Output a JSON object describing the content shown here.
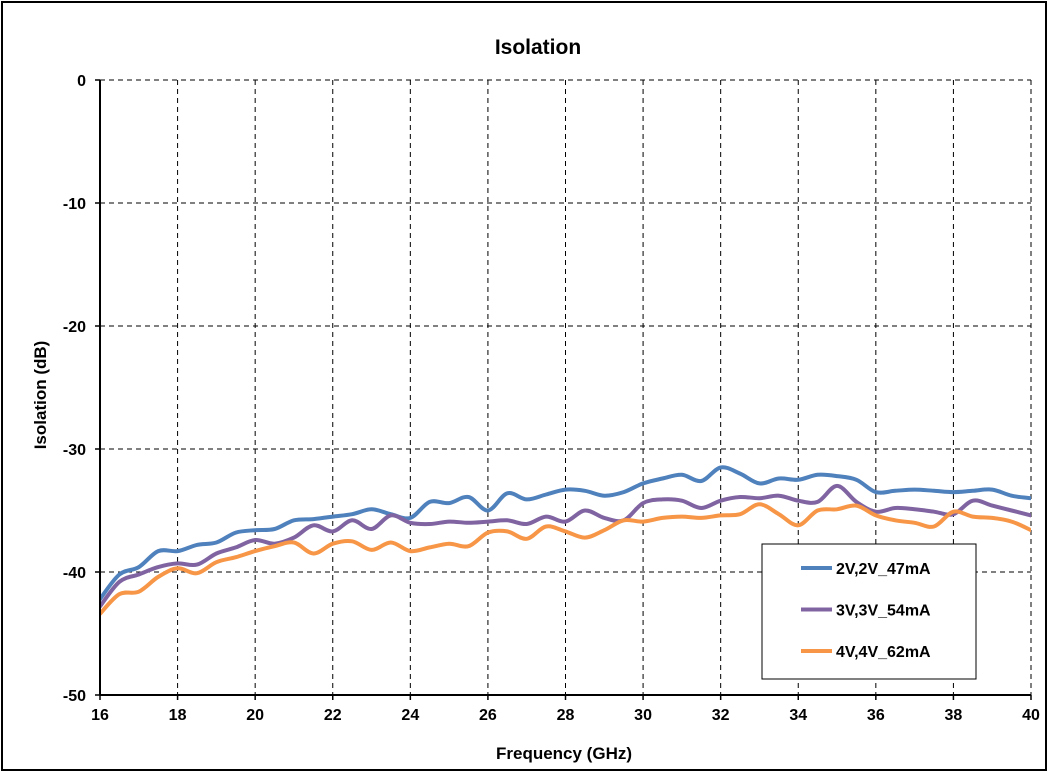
{
  "chart_data": {
    "type": "line",
    "title": "Isolation",
    "xlabel": "Frequency (GHz)",
    "ylabel": "Isolation (dB)",
    "xlim": [
      16,
      40
    ],
    "ylim": [
      -50,
      0
    ],
    "x_ticks": [
      "16",
      "18",
      "20",
      "22",
      "24",
      "26",
      "28",
      "30",
      "32",
      "34",
      "36",
      "38",
      "40"
    ],
    "y_ticks": [
      "0",
      "-10",
      "-20",
      "-30",
      "-40",
      "-50"
    ],
    "grid": "dashed",
    "legend_position": "bottom-right",
    "series": [
      {
        "name": "2V,2V_47mA",
        "color": "#4F81BD",
        "x": [
          16,
          16.5,
          17,
          17.5,
          18,
          18.5,
          19,
          19.5,
          20,
          20.5,
          21,
          21.5,
          22,
          22.5,
          23,
          23.5,
          24,
          24.5,
          25,
          25.5,
          26,
          26.5,
          27,
          27.5,
          28,
          28.5,
          29,
          29.5,
          30,
          30.5,
          31,
          31.5,
          32,
          32.5,
          33,
          33.5,
          34,
          34.5,
          35,
          35.5,
          36,
          36.5,
          37,
          37.5,
          38,
          38.5,
          39,
          39.5,
          40
        ],
        "y": [
          -42.2,
          -40.2,
          -39.6,
          -38.3,
          -38.3,
          -37.8,
          -37.6,
          -36.8,
          -36.6,
          -36.5,
          -35.8,
          -35.7,
          -35.5,
          -35.3,
          -34.9,
          -35.3,
          -35.6,
          -34.3,
          -34.4,
          -33.9,
          -35.0,
          -33.6,
          -34.1,
          -33.7,
          -33.3,
          -33.4,
          -33.8,
          -33.5,
          -32.8,
          -32.4,
          -32.1,
          -32.6,
          -31.5,
          -32.0,
          -32.8,
          -32.4,
          -32.5,
          -32.1,
          -32.2,
          -32.5,
          -33.5,
          -33.4,
          -33.3,
          -33.4,
          -33.5,
          -33.4,
          -33.3,
          -33.8,
          -34.0
        ]
      },
      {
        "name": "3V,3V_54mA",
        "color": "#8064A2",
        "x": [
          16,
          16.5,
          17,
          17.5,
          18,
          18.5,
          19,
          19.5,
          20,
          20.5,
          21,
          21.5,
          22,
          22.5,
          23,
          23.5,
          24,
          24.5,
          25,
          25.5,
          26,
          26.5,
          27,
          27.5,
          28,
          28.5,
          29,
          29.5,
          30,
          30.5,
          31,
          31.5,
          32,
          32.5,
          33,
          33.5,
          34,
          34.5,
          35,
          35.5,
          36,
          36.5,
          37,
          37.5,
          38,
          38.5,
          39,
          39.5,
          40
        ],
        "y": [
          -42.8,
          -40.8,
          -40.2,
          -39.6,
          -39.3,
          -39.4,
          -38.5,
          -38.0,
          -37.4,
          -37.7,
          -37.2,
          -36.2,
          -36.7,
          -35.8,
          -36.5,
          -35.4,
          -36.0,
          -36.1,
          -35.9,
          -36.0,
          -35.9,
          -35.8,
          -36.1,
          -35.5,
          -35.9,
          -35.0,
          -35.6,
          -35.8,
          -34.4,
          -34.1,
          -34.2,
          -34.8,
          -34.2,
          -33.9,
          -34.0,
          -33.8,
          -34.2,
          -34.3,
          -33.0,
          -34.3,
          -35.1,
          -34.8,
          -34.9,
          -35.1,
          -35.3,
          -34.2,
          -34.6,
          -35.0,
          -35.4
        ]
      },
      {
        "name": "4V,4V_62mA",
        "color": "#F79646",
        "x": [
          16,
          16.5,
          17,
          17.5,
          18,
          18.5,
          19,
          19.5,
          20,
          20.5,
          21,
          21.5,
          22,
          22.5,
          23,
          23.5,
          24,
          24.5,
          25,
          25.5,
          26,
          26.5,
          27,
          27.5,
          28,
          28.5,
          29,
          29.5,
          30,
          30.5,
          31,
          31.5,
          32,
          32.5,
          33,
          33.5,
          34,
          34.5,
          35,
          35.5,
          36,
          36.5,
          37,
          37.5,
          38,
          38.5,
          39,
          39.5,
          40
        ],
        "y": [
          -43.4,
          -41.8,
          -41.6,
          -40.4,
          -39.7,
          -40.1,
          -39.2,
          -38.8,
          -38.3,
          -37.9,
          -37.6,
          -38.5,
          -37.7,
          -37.5,
          -38.2,
          -37.6,
          -38.3,
          -38.0,
          -37.7,
          -37.9,
          -36.8,
          -36.7,
          -37.3,
          -36.3,
          -36.7,
          -37.2,
          -36.6,
          -35.8,
          -35.9,
          -35.6,
          -35.5,
          -35.6,
          -35.4,
          -35.3,
          -34.5,
          -35.3,
          -36.2,
          -35.0,
          -34.9,
          -34.6,
          -35.4,
          -35.8,
          -36.0,
          -36.3,
          -35.1,
          -35.5,
          -35.6,
          -35.9,
          -36.6
        ]
      }
    ]
  }
}
